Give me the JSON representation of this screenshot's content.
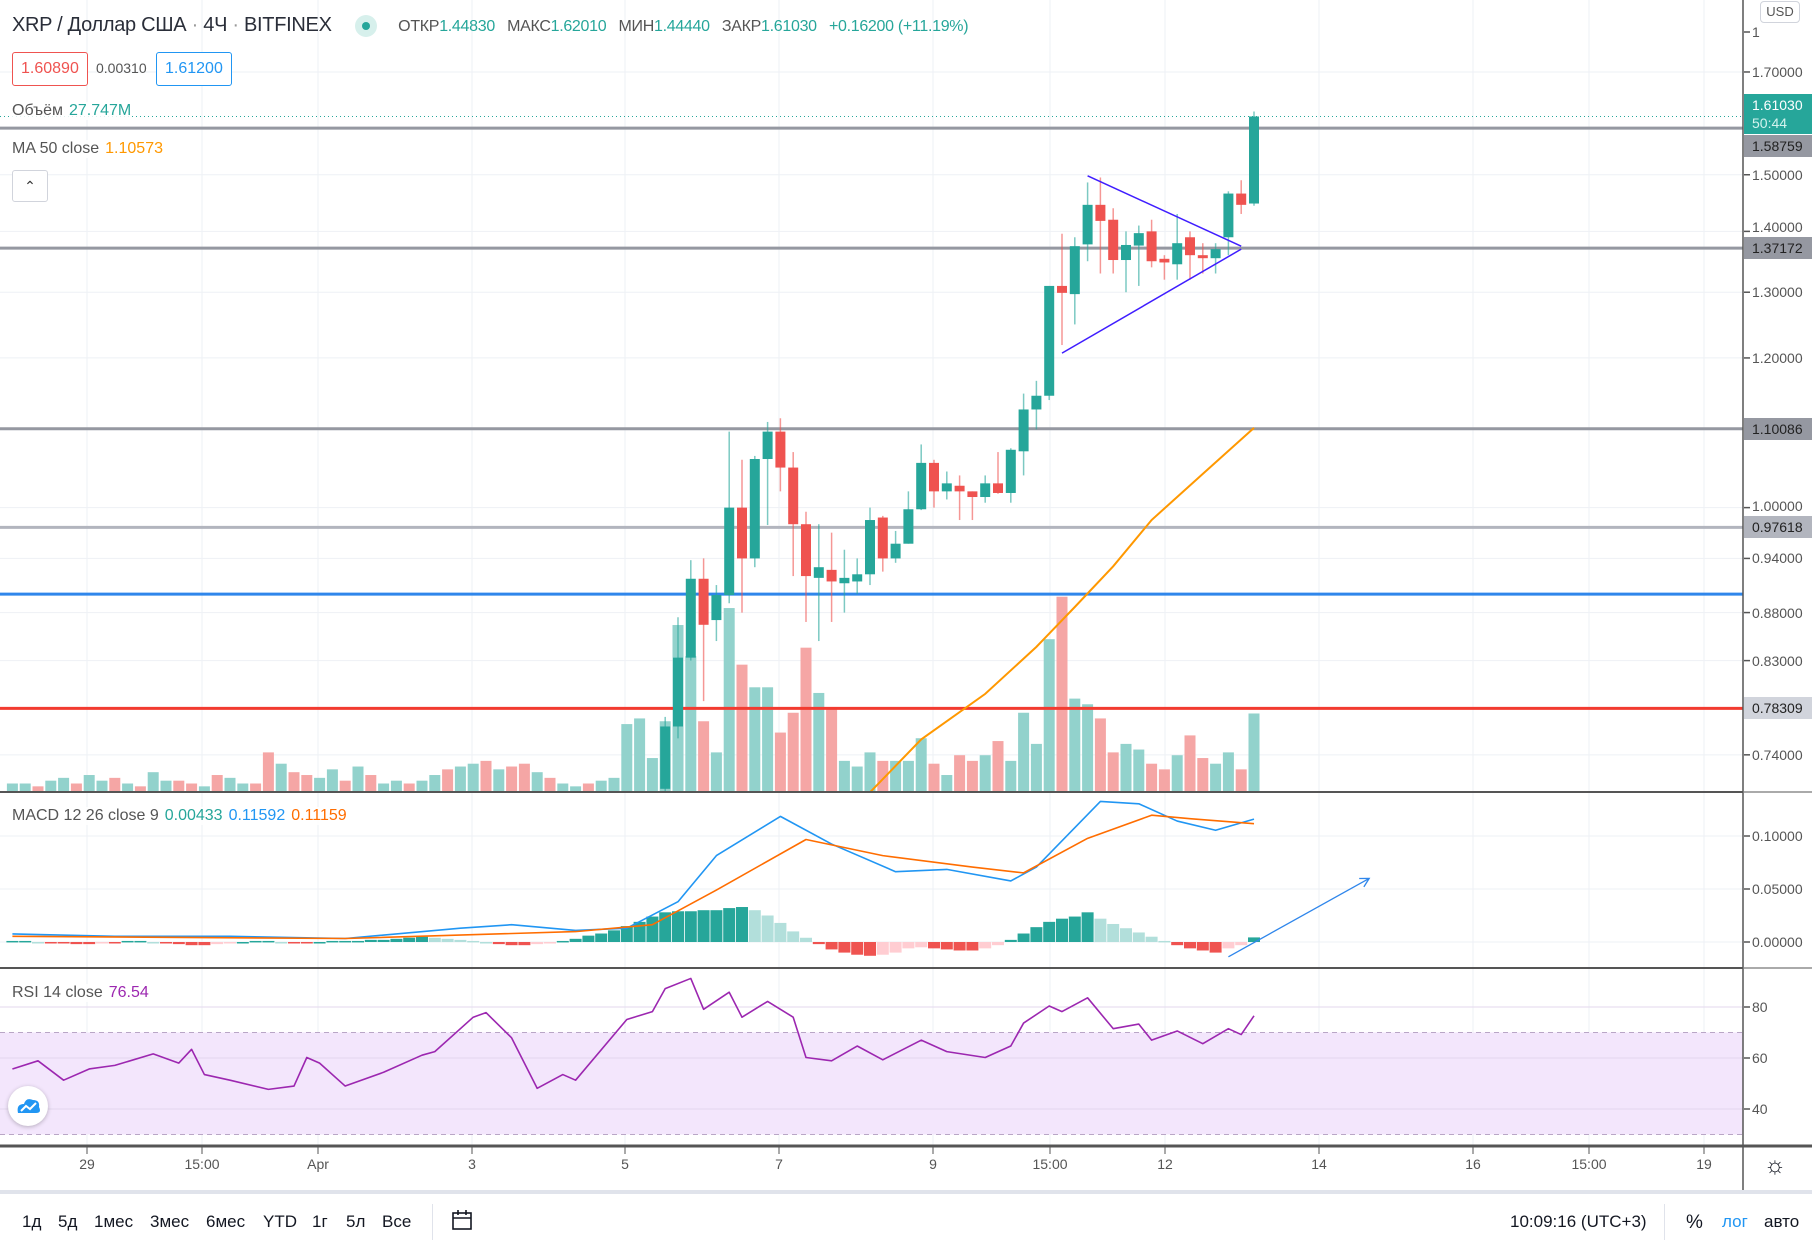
{
  "header": {
    "symbol": "XRP / Доллар США",
    "interval": "4Ч",
    "exchange": "BITFINEX",
    "sep": "·",
    "ohlc": [
      {
        "label": "ОТКР",
        "value": "1.44830"
      },
      {
        "label": "МАКС",
        "value": "1.62010"
      },
      {
        "label": "МИН",
        "value": "1.44440"
      },
      {
        "label": "ЗАКР",
        "value": "1.61030"
      }
    ],
    "change": "+0.16200 (+11.19%)",
    "sell_price": "1.60890",
    "spread": "0.00310",
    "buy_price": "1.61200",
    "status_color": "#26a69a"
  },
  "indicators": {
    "volume": {
      "label": "Объём",
      "value": "27.747M"
    },
    "ma": {
      "label": "MA 50 close",
      "value": "1.10573",
      "color": "#ff9800"
    },
    "macd": {
      "label": "MACD 12 26 close 9",
      "hist": "0.00433",
      "macd": "0.11592",
      "signal": "0.11159",
      "macd_color": "#2196f3",
      "signal_color": "#ff6d00"
    },
    "rsi": {
      "label": "RSI 14 close",
      "value": "76.54",
      "color": "#9c27b0"
    }
  },
  "price_axis": {
    "currency": "USD",
    "top_partial": "1",
    "ticks": [
      "1.70000",
      "1.50000",
      "1.40000",
      "1.30000",
      "1.20000",
      "1.00000",
      "0.94000",
      "0.88000",
      "0.83000",
      "0.74000"
    ],
    "last_price": "1.61030",
    "countdown": "50:44",
    "level_tags": [
      "1.58759",
      "1.37172",
      "1.10086",
      "0.97618",
      "0.78309"
    ]
  },
  "macd_axis": {
    "ticks": [
      "0.10000",
      "0.05000",
      "0.00000"
    ]
  },
  "rsi_axis": {
    "ticks": [
      "80",
      "60",
      "40"
    ],
    "band": [
      30,
      70
    ]
  },
  "time_axis": {
    "labels": [
      "29",
      "15:00",
      "Apr",
      "3",
      "5",
      "7",
      "9",
      "15:00",
      "12",
      "14",
      "16",
      "15:00",
      "19"
    ]
  },
  "bottom_bar": {
    "ranges": [
      "1д",
      "5д",
      "1мес",
      "3мес",
      "6мес",
      "YTD",
      "1г",
      "5л",
      "Все"
    ],
    "clock": "10:09:16",
    "timezone": "(UTC+3)",
    "percent": "%",
    "log": "лог",
    "auto": "авто"
  },
  "colors": {
    "up": "#26a69a",
    "down": "#ef5350",
    "up_volume": "#92d2cc",
    "down_volume": "#f5a6a5",
    "drawing": "#3f1dff",
    "blue_line": "#2f86eb",
    "red_line": "#f23b30",
    "level_line": "#9598a1"
  },
  "chart_data": [
    {
      "type": "candlestick",
      "scale": "log",
      "ylim": [
        0.72,
        1.75
      ],
      "first_candle_bar": 51,
      "candles_ohlc": [
        [
          0.71,
          0.775,
          0.7,
          0.766
        ],
        [
          0.766,
          0.875,
          0.755,
          0.833
        ],
        [
          0.833,
          0.938,
          0.83,
          0.917
        ],
        [
          0.917,
          0.94,
          0.79,
          0.867
        ],
        [
          0.872,
          0.91,
          0.85,
          0.899
        ],
        [
          0.899,
          1.097,
          0.89,
          1.0
        ],
        [
          1.0,
          1.06,
          0.88,
          0.94
        ],
        [
          0.94,
          1.065,
          0.93,
          1.061
        ],
        [
          1.061,
          1.11,
          0.979,
          1.097
        ],
        [
          1.097,
          1.115,
          1.02,
          1.05
        ],
        [
          1.05,
          1.07,
          0.92,
          0.98
        ],
        [
          0.98,
          0.995,
          0.87,
          0.92
        ],
        [
          0.918,
          0.98,
          0.85,
          0.93
        ],
        [
          0.927,
          0.97,
          0.87,
          0.914
        ],
        [
          0.912,
          0.95,
          0.88,
          0.918
        ],
        [
          0.914,
          0.94,
          0.9,
          0.922
        ],
        [
          0.922,
          1.0,
          0.91,
          0.985
        ],
        [
          0.988,
          0.99,
          0.925,
          0.94
        ],
        [
          0.94,
          0.972,
          0.935,
          0.957
        ],
        [
          0.957,
          1.02,
          0.957,
          0.998
        ],
        [
          0.998,
          1.08,
          0.997,
          1.056
        ],
        [
          1.056,
          1.06,
          1.0,
          1.02
        ],
        [
          1.02,
          1.045,
          1.01,
          1.03
        ],
        [
          1.027,
          1.04,
          0.985,
          1.02
        ],
        [
          1.02,
          1.02,
          0.985,
          1.013
        ],
        [
          1.013,
          1.04,
          1.006,
          1.03
        ],
        [
          1.03,
          1.07,
          1.017,
          1.018
        ],
        [
          1.018,
          1.075,
          1.006,
          1.073
        ],
        [
          1.071,
          1.149,
          1.04,
          1.127
        ],
        [
          1.127,
          1.167,
          1.1,
          1.146
        ],
        [
          1.146,
          1.31,
          1.14,
          1.31
        ],
        [
          1.31,
          1.396,
          1.219,
          1.299
        ],
        [
          1.297,
          1.39,
          1.25,
          1.375
        ],
        [
          1.378,
          1.486,
          1.35,
          1.446
        ],
        [
          1.446,
          1.495,
          1.33,
          1.418
        ],
        [
          1.42,
          1.44,
          1.33,
          1.352
        ],
        [
          1.352,
          1.4,
          1.3,
          1.377
        ],
        [
          1.376,
          1.41,
          1.31,
          1.397
        ],
        [
          1.4,
          1.42,
          1.34,
          1.35
        ],
        [
          1.354,
          1.36,
          1.32,
          1.348
        ],
        [
          1.345,
          1.43,
          1.32,
          1.38
        ],
        [
          1.39,
          1.4,
          1.32,
          1.36
        ],
        [
          1.36,
          1.38,
          1.33,
          1.355
        ],
        [
          1.355,
          1.38,
          1.33,
          1.37
        ],
        [
          1.39,
          1.47,
          1.36,
          1.466
        ],
        [
          1.466,
          1.49,
          1.43,
          1.446
        ],
        [
          1.4483,
          1.6201,
          1.4444,
          1.6103
        ]
      ],
      "volume_millions": [
        3,
        3,
        2,
        4,
        5,
        3,
        6,
        4,
        5,
        3,
        2,
        7,
        4,
        4,
        3,
        2,
        6,
        5,
        3,
        3,
        14,
        10,
        7,
        6,
        5,
        8,
        4,
        9,
        6,
        3,
        4,
        3,
        4,
        6,
        8,
        9,
        10,
        11,
        8,
        9,
        10,
        7,
        5,
        3,
        2,
        3,
        4,
        5,
        24,
        26,
        12,
        25,
        59,
        48,
        25,
        14,
        65,
        45,
        37,
        37,
        21,
        28,
        51,
        35,
        30,
        11,
        9,
        14,
        11,
        11,
        11,
        19,
        10,
        6,
        13,
        11,
        13,
        18,
        11,
        28,
        17,
        54,
        69,
        33,
        31,
        26,
        14,
        17,
        15,
        10,
        8,
        13,
        20,
        12,
        10,
        14,
        8,
        27.747
      ],
      "volume_up_before_candles": [
        1,
        1,
        0,
        1,
        1,
        0,
        1,
        1,
        0,
        1,
        0,
        1,
        1,
        0,
        0,
        1,
        0,
        1,
        1,
        0,
        0,
        1,
        0,
        0,
        1,
        1,
        0,
        1,
        0,
        1,
        1,
        0,
        1,
        1,
        0,
        1,
        1,
        0,
        1,
        0,
        0,
        1,
        0,
        1,
        1,
        0,
        1,
        1,
        1,
        1,
        1
      ],
      "ma50": [
        [
          67,
          0.707
        ],
        [
          71,
          0.754
        ],
        [
          76,
          0.797
        ],
        [
          80,
          0.844
        ],
        [
          83,
          0.886
        ],
        [
          86,
          0.931
        ],
        [
          89,
          0.985
        ],
        [
          93,
          1.042
        ],
        [
          97,
          1.102
        ]
      ],
      "horizontal_levels": [
        {
          "price": 1.58759,
          "color": "#9598a1"
        },
        {
          "price": 1.37172,
          "color": "#9598a1"
        },
        {
          "price": 1.10086,
          "color": "#9598a1"
        },
        {
          "price": 0.97618,
          "color": "#b2b5be"
        },
        {
          "price": 0.9,
          "color": "#2f86eb"
        },
        {
          "price": 0.78309,
          "color": "#f23b30"
        }
      ],
      "triangle_lines": [
        [
          [
            84,
            1.498
          ],
          [
            96,
            1.375
          ]
        ],
        [
          [
            82,
            1.207
          ],
          [
            96,
            1.37
          ]
        ]
      ]
    },
    {
      "type": "macd",
      "ylim": [
        -0.02,
        0.14
      ],
      "macd": [
        [
          0,
          0.0076
        ],
        [
          8,
          0.0054
        ],
        [
          17,
          0.0054
        ],
        [
          26,
          0.0033
        ],
        [
          35,
          0.013
        ],
        [
          39,
          0.0163
        ],
        [
          44,
          0.0109
        ],
        [
          48,
          0.013
        ],
        [
          52,
          0.038
        ],
        [
          55,
          0.0815
        ],
        [
          60,
          0.1185
        ],
        [
          64,
          0.0924
        ],
        [
          69,
          0.0663
        ],
        [
          73,
          0.0685
        ],
        [
          78,
          0.0576
        ],
        [
          80,
          0.0707
        ],
        [
          85,
          0.1326
        ],
        [
          88,
          0.1304
        ],
        [
          91,
          0.1141
        ],
        [
          94,
          0.1054
        ],
        [
          97,
          0.11592
        ]
      ],
      "signal": [
        [
          0,
          0.0054
        ],
        [
          26,
          0.0033
        ],
        [
          44,
          0.0098
        ],
        [
          50,
          0.0163
        ],
        [
          55,
          0.049
        ],
        [
          62,
          0.0967
        ],
        [
          68,
          0.0815
        ],
        [
          75,
          0.0707
        ],
        [
          79,
          0.0652
        ],
        [
          84,
          0.0978
        ],
        [
          89,
          0.1196
        ],
        [
          92,
          0.1163
        ],
        [
          97,
          0.11159
        ]
      ],
      "histogram": [
        0.001,
        0.001,
        0,
        -0.001,
        -0.001,
        -0.002,
        -0.002,
        -0.001,
        -0.001,
        0.001,
        0.001,
        0,
        -0.001,
        -0.002,
        -0.003,
        -0.003,
        -0.002,
        -0.001,
        0,
        0.001,
        0.001,
        0,
        -0.001,
        -0.001,
        0,
        0.001,
        0.001,
        0.001,
        0.002,
        0.002,
        0.003,
        0.004,
        0.005,
        0.004,
        0.003,
        0.002,
        0.001,
        0,
        -0.002,
        -0.003,
        -0.003,
        -0.002,
        -0.001,
        0.001,
        0.003,
        0.006,
        0.008,
        0.011,
        0.015,
        0.019,
        0.024,
        0.028,
        0.029,
        0.029,
        0.03,
        0.03,
        0.032,
        0.033,
        0.03,
        0.025,
        0.018,
        0.01,
        0.004,
        -0.002,
        -0.007,
        -0.01,
        -0.012,
        -0.013,
        -0.012,
        -0.01,
        -0.006,
        -0.005,
        -0.006,
        -0.007,
        -0.008,
        -0.008,
        -0.006,
        -0.003,
        0.002,
        0.008,
        0.014,
        0.019,
        0.022,
        0.024,
        0.028,
        0.022,
        0.017,
        0.013,
        0.009,
        0.005,
        0.001,
        -0.003,
        -0.006,
        -0.008,
        -0.01,
        -0.006,
        -0.003,
        0.00433
      ],
      "arrow": [
        [
          95,
          -0.014
        ],
        [
          106,
          0.06
        ]
      ]
    },
    {
      "type": "line",
      "ylim": [
        25,
        95
      ],
      "rsi": [
        [
          0,
          55.7
        ],
        [
          2,
          58.9
        ],
        [
          4,
          51.3
        ],
        [
          6,
          55.7
        ],
        [
          8,
          57.1
        ],
        [
          11,
          61.6
        ],
        [
          13,
          58.0
        ],
        [
          14,
          63.4
        ],
        [
          15,
          53.5
        ],
        [
          17,
          51.3
        ],
        [
          20,
          47.7
        ],
        [
          22,
          49.0
        ],
        [
          23,
          60.2
        ],
        [
          24,
          58.0
        ],
        [
          26,
          49.0
        ],
        [
          29,
          54.4
        ],
        [
          32,
          61.1
        ],
        [
          33,
          62.5
        ],
        [
          36,
          76.0
        ],
        [
          37,
          77.8
        ],
        [
          39,
          67.9
        ],
        [
          41,
          48.1
        ],
        [
          43,
          53.5
        ],
        [
          44,
          51.3
        ],
        [
          48,
          75.1
        ],
        [
          50,
          78.2
        ],
        [
          51,
          87.2
        ],
        [
          53,
          91.2
        ],
        [
          54,
          79.1
        ],
        [
          56,
          85.8
        ],
        [
          57,
          76.0
        ],
        [
          59,
          82.2
        ],
        [
          61,
          76.0
        ],
        [
          62,
          60.2
        ],
        [
          64,
          58.9
        ],
        [
          66,
          64.7
        ],
        [
          68,
          59.3
        ],
        [
          71,
          67.0
        ],
        [
          73,
          62.5
        ],
        [
          76,
          60.2
        ],
        [
          78,
          64.7
        ],
        [
          79,
          73.7
        ],
        [
          81,
          80.4
        ],
        [
          82,
          78.2
        ],
        [
          84,
          83.6
        ],
        [
          86,
          71.5
        ],
        [
          88,
          73.3
        ],
        [
          89,
          67.0
        ],
        [
          91,
          70.6
        ],
        [
          93,
          65.6
        ],
        [
          95,
          71.5
        ],
        [
          96,
          69.2
        ],
        [
          97,
          76.54
        ]
      ]
    }
  ]
}
